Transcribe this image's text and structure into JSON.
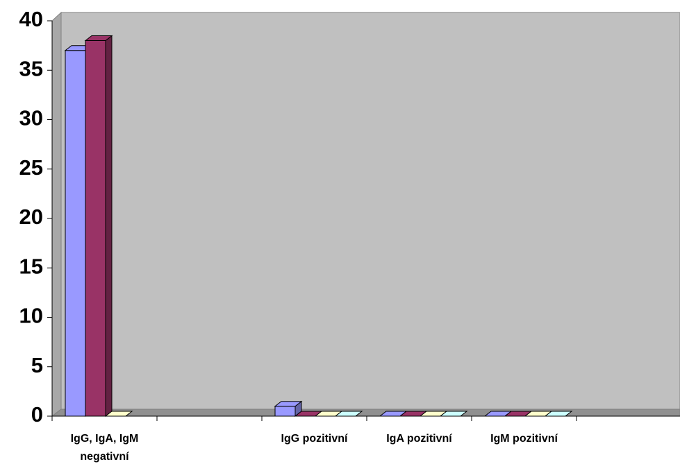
{
  "chart_data": {
    "type": "bar3d",
    "categories": [
      "IgG, IgA, IgM negativní",
      null,
      "IgG pozitivní",
      "IgA pozitivní",
      "IgM pozitivní",
      null
    ],
    "series": [
      {
        "color": "#9999ff",
        "values": [
          37,
          null,
          1,
          0,
          0,
          null
        ]
      },
      {
        "color": "#993366",
        "values": [
          38,
          null,
          0,
          0,
          0,
          null
        ]
      },
      {
        "color": "#ffffcc",
        "values": [
          0,
          null,
          0,
          0,
          0,
          null
        ]
      },
      {
        "color": "#ccffff",
        "values": [
          null,
          null,
          0,
          0,
          0,
          null
        ]
      }
    ],
    "ylim": [
      0,
      40
    ],
    "yticks": [
      0,
      5,
      10,
      15,
      20,
      25,
      30,
      35,
      40
    ],
    "grid": false
  }
}
